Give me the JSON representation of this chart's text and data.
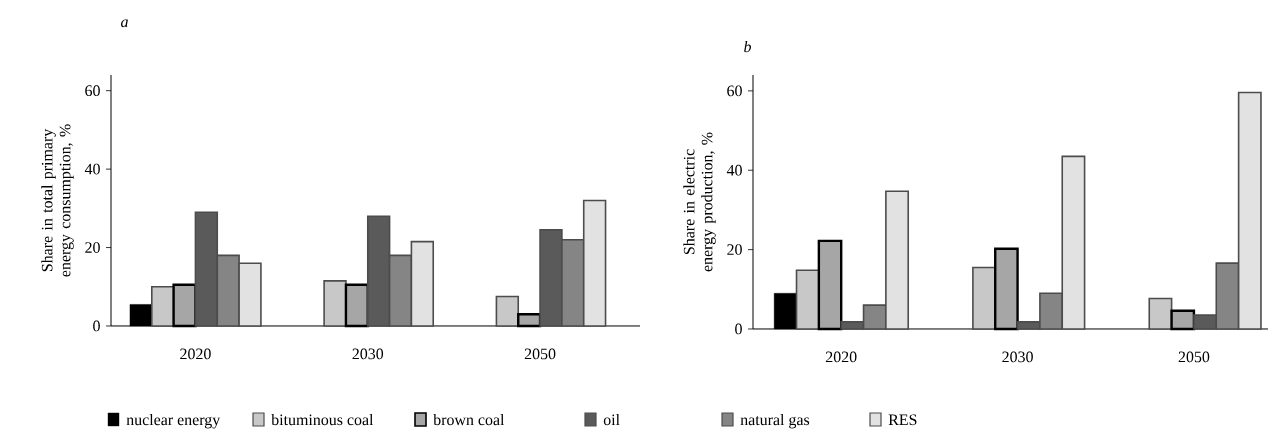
{
  "chart_data": [
    {
      "type": "bar",
      "title": "a",
      "ylabel": "Share in total primary energy consumption, %",
      "categories": [
        "2020",
        "2030",
        "2050"
      ],
      "ylim": [
        0,
        64
      ],
      "yticks": [
        0,
        20,
        40,
        60
      ],
      "legend": "bottom",
      "series": [
        {
          "name": "nuclear energy",
          "color": "#000000",
          "values": [
            5.5,
            null,
            null
          ]
        },
        {
          "name": "bituminous coal",
          "color": "#c8c8c8",
          "values": [
            10,
            11.5,
            7.5
          ]
        },
        {
          "name": "brown coal",
          "color": "#a6a6a6",
          "values": [
            10.5,
            10.5,
            3
          ]
        },
        {
          "name": "oil",
          "color": "#5a5a5a",
          "values": [
            29,
            28,
            24.5
          ]
        },
        {
          "name": "natural gas",
          "color": "#858585",
          "values": [
            18,
            18,
            22
          ]
        },
        {
          "name": "RES",
          "color": "#e2e2e2",
          "values": [
            16,
            21.5,
            32
          ]
        }
      ]
    },
    {
      "type": "bar",
      "title": "b",
      "ylabel": "Share in electric energy production, %",
      "categories": [
        "2020",
        "2030",
        "2050"
      ],
      "ylim": [
        0,
        64
      ],
      "yticks": [
        0,
        20,
        40,
        60
      ],
      "series": [
        {
          "color": "#000000",
          "values": [
            9,
            null,
            null
          ]
        },
        {
          "color": "#c8c8c8",
          "values": [
            14.8,
            15.5,
            7.7
          ]
        },
        {
          "color": "#a6a6a6",
          "values": [
            22.2,
            20.2,
            4.6
          ]
        },
        {
          "color": "#5a5a5a",
          "values": [
            1.8,
            1.8,
            3.5
          ]
        },
        {
          "color": "#858585",
          "values": [
            6,
            9,
            16.6
          ]
        },
        {
          "color": "#e2e2e2",
          "values": [
            34.7,
            43.5,
            59.6
          ]
        }
      ]
    }
  ]
}
